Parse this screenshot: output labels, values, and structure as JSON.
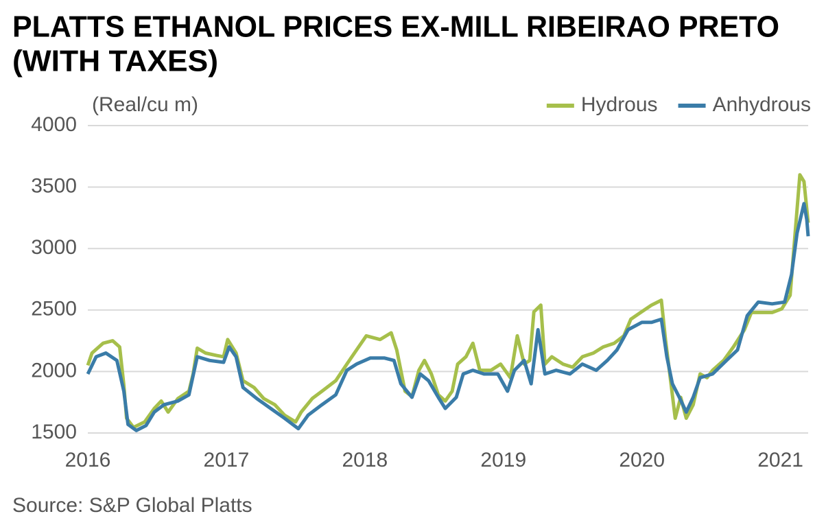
{
  "chart_data": {
    "type": "line",
    "title": "PLATTS ETHANOL PRICES EX-MILL RIBEIRAO PRETO",
    "title_line2": "(WITH TAXES)",
    "y_label": "(Real/cu m)",
    "source": "Source: S&P Global Platts",
    "xlim": [
      2016,
      2021.2
    ],
    "xticks": [
      2016,
      2017,
      2018,
      2019,
      2020,
      2021
    ],
    "ylim": [
      1500,
      4000
    ],
    "yticks": [
      1500,
      2000,
      2500,
      3000,
      3500,
      4000
    ],
    "grid": true,
    "legend": "top-right",
    "series": [
      {
        "name": "Hydrous",
        "color": "#a6bf4b",
        "x": [
          2016.0,
          2016.03,
          2016.11,
          2016.18,
          2016.23,
          2016.26,
          2016.28,
          2016.33,
          2016.41,
          2016.48,
          2016.53,
          2016.58,
          2016.65,
          2016.73,
          2016.76,
          2016.79,
          2016.85,
          2016.93,
          2016.98,
          2017.01,
          2017.07,
          2017.12,
          2017.2,
          2017.27,
          2017.35,
          2017.42,
          2017.5,
          2017.54,
          2017.62,
          2017.69,
          2017.79,
          2017.87,
          2017.94,
          2018.01,
          2018.11,
          2018.19,
          2018.23,
          2018.29,
          2018.34,
          2018.39,
          2018.43,
          2018.48,
          2018.53,
          2018.58,
          2018.63,
          2018.67,
          2018.73,
          2018.78,
          2018.83,
          2018.91,
          2018.98,
          2019.05,
          2019.1,
          2019.15,
          2019.19,
          2019.22,
          2019.27,
          2019.3,
          2019.35,
          2019.43,
          2019.5,
          2019.57,
          2019.65,
          2019.72,
          2019.8,
          2019.87,
          2019.92,
          2019.99,
          2020.07,
          2020.14,
          2020.17,
          2020.21,
          2020.24,
          2020.28,
          2020.32,
          2020.37,
          2020.42,
          2020.47,
          2020.51,
          2020.59,
          2020.66,
          2020.74,
          2020.79,
          2020.86,
          2020.94,
          2021.01,
          2021.07,
          2021.11,
          2021.14,
          2021.17,
          2021.2
        ],
        "values": [
          2050,
          2150,
          2230,
          2250,
          2200,
          1890,
          1620,
          1545,
          1590,
          1700,
          1760,
          1670,
          1780,
          1840,
          1980,
          2190,
          2150,
          2130,
          2120,
          2260,
          2150,
          1925,
          1870,
          1780,
          1730,
          1645,
          1590,
          1670,
          1780,
          1840,
          1925,
          2060,
          2175,
          2290,
          2260,
          2315,
          2175,
          1840,
          1795,
          2010,
          2090,
          1980,
          1810,
          1760,
          1840,
          2060,
          2120,
          2230,
          2010,
          2010,
          2060,
          1950,
          2290,
          2060,
          2090,
          2485,
          2540,
          2060,
          2120,
          2060,
          2035,
          2120,
          2150,
          2200,
          2230,
          2290,
          2425,
          2480,
          2540,
          2580,
          2260,
          1900,
          1620,
          1790,
          1620,
          1730,
          1980,
          1950,
          2010,
          2090,
          2200,
          2340,
          2480,
          2480,
          2480,
          2510,
          2620,
          3180,
          3600,
          3545,
          3210
        ]
      },
      {
        "name": "Anhydrous",
        "color": "#3a7ca8",
        "x": [
          2016.0,
          2016.06,
          2016.13,
          2016.21,
          2016.26,
          2016.29,
          2016.35,
          2016.42,
          2016.48,
          2016.55,
          2016.65,
          2016.73,
          2016.79,
          2016.88,
          2016.98,
          2017.02,
          2017.07,
          2017.12,
          2017.22,
          2017.32,
          2017.42,
          2017.52,
          2017.59,
          2017.69,
          2017.79,
          2017.87,
          2017.94,
          2018.04,
          2018.14,
          2018.21,
          2018.26,
          2018.34,
          2018.4,
          2018.46,
          2018.53,
          2018.58,
          2018.66,
          2018.71,
          2018.78,
          2018.86,
          2018.96,
          2019.03,
          2019.08,
          2019.15,
          2019.2,
          2019.25,
          2019.3,
          2019.38,
          2019.48,
          2019.57,
          2019.67,
          2019.75,
          2019.82,
          2019.9,
          2020.0,
          2020.07,
          2020.14,
          2020.18,
          2020.22,
          2020.27,
          2020.32,
          2020.37,
          2020.42,
          2020.51,
          2020.61,
          2020.69,
          2020.76,
          2020.84,
          2020.94,
          2021.03,
          2021.08,
          2021.12,
          2021.17,
          2021.19,
          2021.2
        ],
        "values": [
          1980,
          2120,
          2150,
          2090,
          1840,
          1570,
          1520,
          1560,
          1670,
          1730,
          1760,
          1810,
          2120,
          2090,
          2075,
          2200,
          2120,
          1870,
          1780,
          1700,
          1620,
          1535,
          1645,
          1730,
          1810,
          2010,
          2060,
          2110,
          2110,
          2090,
          1900,
          1790,
          1980,
          1925,
          1790,
          1700,
          1790,
          1980,
          2010,
          1980,
          1980,
          1840,
          2010,
          2090,
          1900,
          2340,
          1980,
          2010,
          1980,
          2060,
          2010,
          2090,
          2175,
          2340,
          2400,
          2400,
          2425,
          2120,
          1900,
          1790,
          1670,
          1790,
          1950,
          1980,
          2090,
          2175,
          2455,
          2565,
          2550,
          2565,
          2790,
          3125,
          3365,
          3235,
          3100
        ]
      }
    ]
  }
}
